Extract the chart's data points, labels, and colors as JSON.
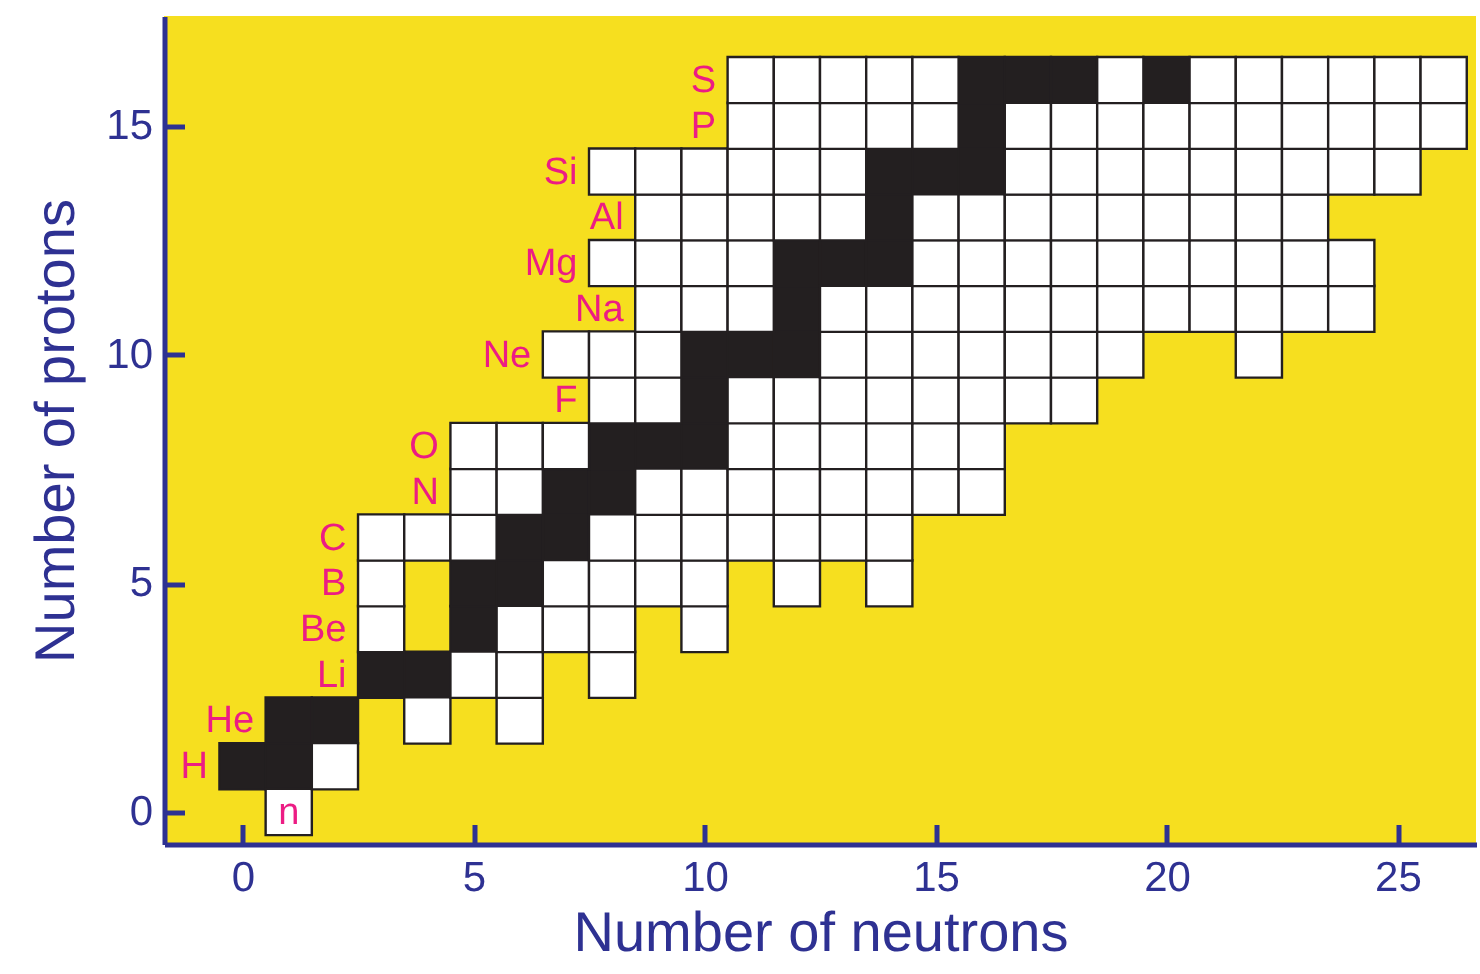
{
  "chart_data": {
    "type": "scatter",
    "xlabel": "Number of neutrons",
    "ylabel": "Number of protons",
    "marker": "square",
    "xlim": [
      -1.7,
      26.7
    ],
    "ylim": [
      -0.7,
      17.4
    ],
    "xticks": [
      0,
      5,
      10,
      15,
      20,
      25
    ],
    "yticks": [
      0,
      5,
      10,
      15
    ],
    "series": [
      {
        "color": "#231f20",
        "x": [
          0,
          1,
          1,
          2,
          3,
          4,
          5,
          5,
          6,
          6,
          7,
          7,
          8,
          8,
          9,
          10,
          10,
          10,
          11,
          12,
          12,
          12,
          13,
          14,
          14,
          14,
          15,
          16,
          16,
          16,
          17,
          18,
          20
        ],
        "values": [
          1,
          1,
          2,
          2,
          3,
          3,
          4,
          5,
          5,
          6,
          6,
          7,
          7,
          8,
          8,
          8,
          9,
          10,
          10,
          10,
          11,
          12,
          12,
          12,
          13,
          14,
          14,
          14,
          15,
          16,
          16,
          16,
          16
        ]
      },
      {
        "color": "#ffffff",
        "x": [
          1,
          2,
          4,
          6,
          5,
          6,
          8,
          3,
          6,
          7,
          8,
          10,
          3,
          7,
          8,
          9,
          10,
          12,
          14,
          3,
          4,
          5,
          8,
          9,
          10,
          11,
          12,
          13,
          14,
          5,
          6,
          9,
          10,
          11,
          12,
          13,
          14,
          15,
          16,
          5,
          6,
          7,
          11,
          12,
          13,
          14,
          15,
          16,
          8,
          9,
          11,
          12,
          13,
          14,
          15,
          16,
          17,
          18,
          7,
          8,
          9,
          13,
          14,
          15,
          16,
          17,
          18,
          19,
          22,
          9,
          10,
          11,
          13,
          14,
          15,
          16,
          17,
          18,
          19,
          20,
          21,
          22,
          23,
          24,
          8,
          9,
          10,
          11,
          15,
          16,
          17,
          18,
          19,
          20,
          21,
          22,
          23,
          24,
          9,
          10,
          11,
          12,
          13,
          15,
          16,
          17,
          18,
          19,
          20,
          21,
          22,
          23,
          8,
          9,
          10,
          11,
          12,
          13,
          17,
          18,
          19,
          20,
          21,
          22,
          23,
          24,
          25,
          11,
          12,
          13,
          14,
          15,
          17,
          18,
          19,
          20,
          21,
          22,
          23,
          24,
          25,
          26,
          11,
          12,
          13,
          14,
          15,
          19,
          21,
          22,
          23,
          24,
          25,
          26
        ],
        "values": [
          0,
          1,
          2,
          2,
          3,
          3,
          3,
          4,
          4,
          4,
          4,
          4,
          5,
          5,
          5,
          5,
          5,
          5,
          5,
          6,
          6,
          6,
          6,
          6,
          6,
          6,
          6,
          6,
          6,
          7,
          7,
          7,
          7,
          7,
          7,
          7,
          7,
          7,
          7,
          8,
          8,
          8,
          8,
          8,
          8,
          8,
          8,
          8,
          9,
          9,
          9,
          9,
          9,
          9,
          9,
          9,
          9,
          9,
          10,
          10,
          10,
          10,
          10,
          10,
          10,
          10,
          10,
          10,
          10,
          11,
          11,
          11,
          11,
          11,
          11,
          11,
          11,
          11,
          11,
          11,
          11,
          11,
          11,
          11,
          12,
          12,
          12,
          12,
          12,
          12,
          12,
          12,
          12,
          12,
          12,
          12,
          12,
          12,
          13,
          13,
          13,
          13,
          13,
          13,
          13,
          13,
          13,
          13,
          13,
          13,
          13,
          13,
          14,
          14,
          14,
          14,
          14,
          14,
          14,
          14,
          14,
          14,
          14,
          14,
          14,
          14,
          14,
          15,
          15,
          15,
          15,
          15,
          15,
          15,
          15,
          15,
          15,
          15,
          15,
          15,
          15,
          15,
          16,
          16,
          16,
          16,
          16,
          16,
          16,
          16,
          16,
          16,
          16,
          16
        ]
      }
    ],
    "annotations": [
      {
        "text": "n",
        "x": 1,
        "y": 0
      },
      {
        "text": "H",
        "x": 0,
        "y": 1
      },
      {
        "text": "He",
        "x": 1,
        "y": 2
      },
      {
        "text": "Li",
        "x": 3,
        "y": 3
      },
      {
        "text": "Be",
        "x": 3,
        "y": 4
      },
      {
        "text": "B",
        "x": 3,
        "y": 5
      },
      {
        "text": "C",
        "x": 3,
        "y": 6
      },
      {
        "text": "N",
        "x": 5,
        "y": 7
      },
      {
        "text": "O",
        "x": 5,
        "y": 8
      },
      {
        "text": "F",
        "x": 8,
        "y": 9
      },
      {
        "text": "Ne",
        "x": 7,
        "y": 10
      },
      {
        "text": "Na",
        "x": 9,
        "y": 11
      },
      {
        "text": "Mg",
        "x": 8,
        "y": 12
      },
      {
        "text": "Al",
        "x": 9,
        "y": 13
      },
      {
        "text": "Si",
        "x": 8,
        "y": 14
      },
      {
        "text": "P",
        "x": 11,
        "y": 15
      },
      {
        "text": "S",
        "x": 11,
        "y": 16
      }
    ]
  }
}
